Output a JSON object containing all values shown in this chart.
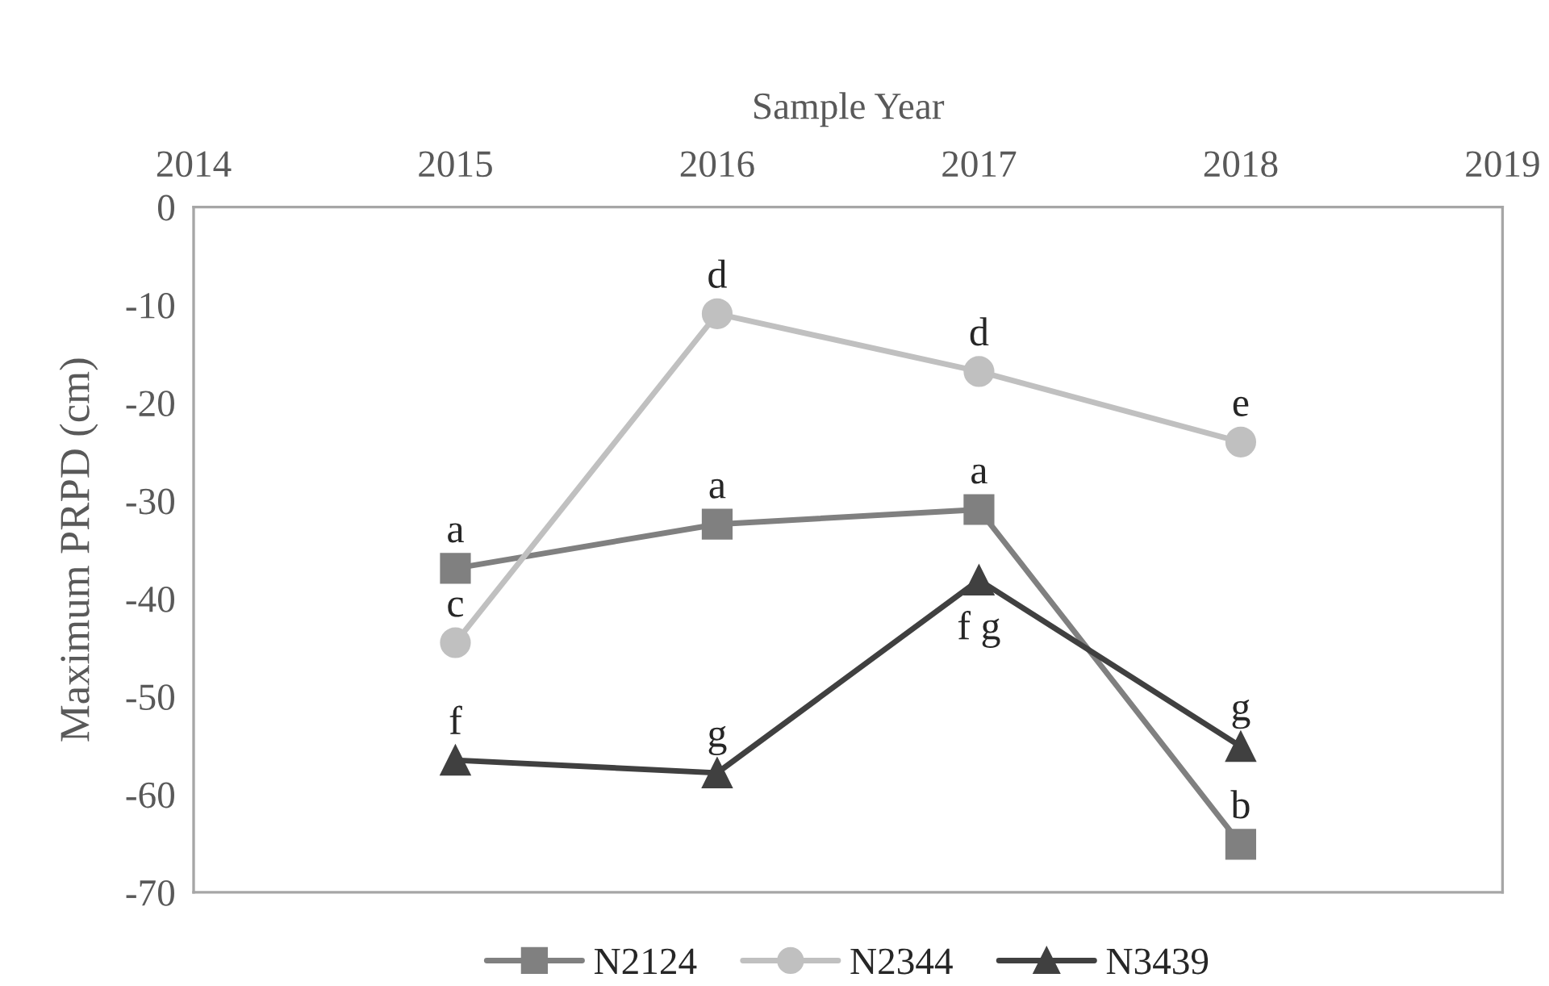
{
  "chart_data": {
    "type": "line",
    "xlabel": "Sample Year",
    "ylabel": "Maximum PRPD (cm)",
    "x": [
      2015,
      2016,
      2017,
      2018
    ],
    "series": [
      {
        "name": "N2124",
        "color": "#808080",
        "marker": "square",
        "values": [
          -36.9,
          -32.4,
          -30.9,
          -65.1
        ]
      },
      {
        "name": "N2344",
        "color": "#c0c0c0",
        "marker": "circle",
        "values": [
          -44.5,
          -10.9,
          -16.8,
          -24.0
        ]
      },
      {
        "name": "N3439",
        "color": "#404040",
        "marker": "triangle",
        "values": [
          -56.5,
          -57.8,
          -38.1,
          -55.1
        ]
      }
    ],
    "xlim": [
      2014,
      2019
    ],
    "xticks": [
      2014,
      2015,
      2016,
      2017,
      2018,
      2019
    ],
    "ylim": [
      -70,
      0
    ],
    "yticks": [
      0,
      -10,
      -20,
      -30,
      -40,
      -50,
      -60,
      -70
    ],
    "grid": false,
    "legend": "bottom",
    "annotations": [
      {
        "text": "a",
        "x": 2015,
        "y": -36.9
      },
      {
        "text": "a",
        "x": 2016,
        "y": -32.4
      },
      {
        "text": "a",
        "x": 2017,
        "y": -30.9
      },
      {
        "text": "b",
        "x": 2018,
        "y": -65.1
      },
      {
        "text": "c",
        "x": 2015,
        "y": -44.5
      },
      {
        "text": "d",
        "x": 2016,
        "y": -10.9
      },
      {
        "text": "d",
        "x": 2017,
        "y": -16.8
      },
      {
        "text": "e",
        "x": 2018,
        "y": -24.0
      },
      {
        "text": "f",
        "x": 2015,
        "y": -56.5
      },
      {
        "text": "g",
        "x": 2016,
        "y": -57.8
      },
      {
        "text": "f g",
        "x": 2017,
        "y": -38.1
      },
      {
        "text": "g",
        "x": 2018,
        "y": -55.1
      }
    ]
  }
}
